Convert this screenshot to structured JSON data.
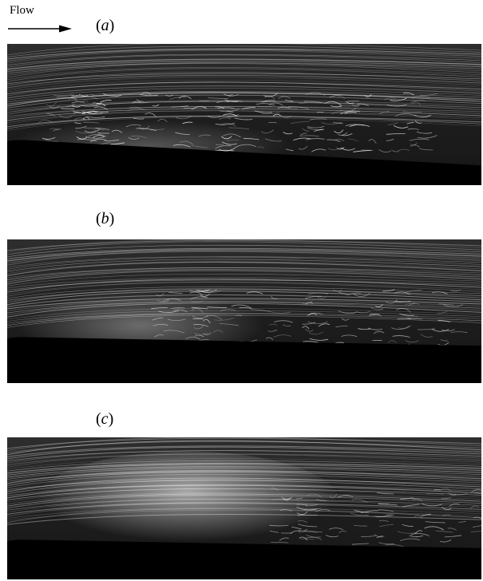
{
  "flow_label": "Flow",
  "panels": [
    {
      "label": "a",
      "description_level": "turbulent-streaks"
    },
    {
      "label": "b",
      "description_level": "moderate-glow"
    },
    {
      "label": "c",
      "description_level": "bright-separation-bubble"
    }
  ],
  "colors": {
    "background": "#ffffff",
    "flow_field": "#1c1c1c",
    "wall": "#000000",
    "streak": "#e6e6e6"
  }
}
